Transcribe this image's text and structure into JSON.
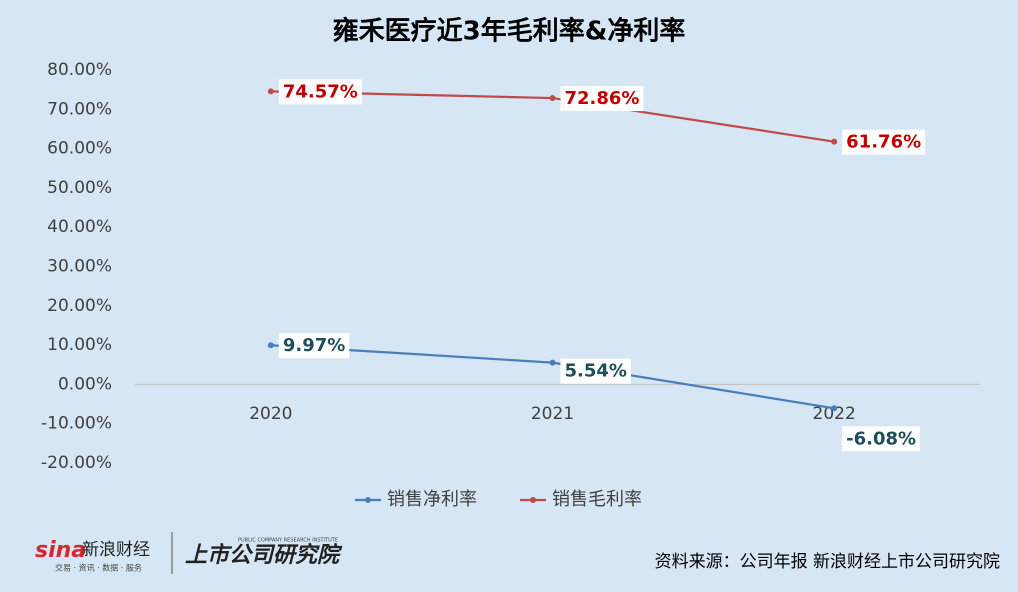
{
  "chart_data": {
    "type": "line",
    "title": "雍禾医疗近3年毛利率&净利率",
    "categories": [
      "2020",
      "2021",
      "2022"
    ],
    "series": [
      {
        "name": "销售净利率",
        "color": "#4a7ebb",
        "values": [
          9.97,
          5.54,
          -6.08
        ],
        "value_labels": [
          "9.97%",
          "5.54%",
          "-6.08%"
        ]
      },
      {
        "name": "销售毛利率",
        "color": "#be4b48",
        "values": [
          74.57,
          72.86,
          61.76
        ],
        "value_labels": [
          "74.57%",
          "72.86%",
          "61.76%"
        ]
      }
    ],
    "ylim": [
      -20,
      80
    ],
    "yticks": [
      {
        "value": 80,
        "label": "80.00%"
      },
      {
        "value": 70,
        "label": "70.00%"
      },
      {
        "value": 60,
        "label": "60.00%"
      },
      {
        "value": 50,
        "label": "50.00%"
      },
      {
        "value": 40,
        "label": "40.00%"
      },
      {
        "value": 30,
        "label": "30.00%"
      },
      {
        "value": 20,
        "label": "20.00%"
      },
      {
        "value": 10,
        "label": "10.00%"
      },
      {
        "value": 0,
        "label": "0.00%"
      },
      {
        "value": -10,
        "label": "-10.00%"
      },
      {
        "value": -20,
        "label": "-20.00%"
      }
    ],
    "legend": "bottom"
  },
  "footer": {
    "logo_sina": "sina",
    "logo_name": "新浪财经",
    "logo_tagline": "交易 · 资讯 · 数据 · 服务",
    "logo_institute": "上市公司研究院",
    "logo_institute_en": "PUBLIC COMPANY RESEARCH INSTITUTE",
    "source": "资料来源：公司年报 新浪财经上市公司研究院"
  }
}
